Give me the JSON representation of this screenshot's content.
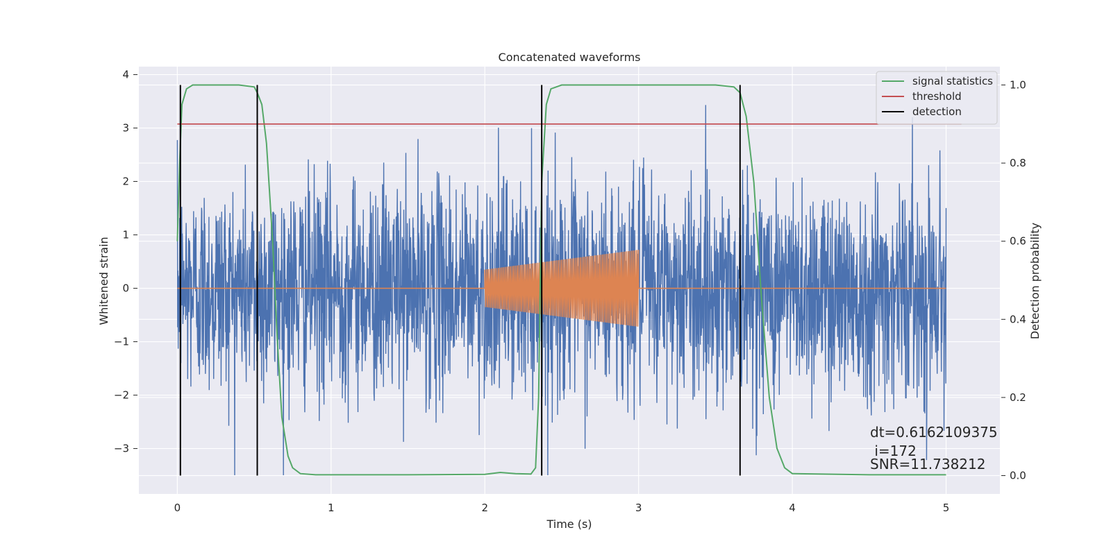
{
  "chart_data": {
    "type": "line",
    "title": "Concatenated waveforms",
    "xlabel": "Time (s)",
    "ylabel": "Whitened strain",
    "y2label": "Detection probability",
    "xlim": [
      -0.25,
      5.35
    ],
    "ylim": [
      -3.85,
      4.15
    ],
    "y2lim": [
      -0.047,
      1.047
    ],
    "xticks": [
      0,
      1,
      2,
      3,
      4,
      5
    ],
    "yticks": [
      -3,
      -2,
      -1,
      0,
      1,
      2,
      3,
      4
    ],
    "y2ticks": [
      0.0,
      0.2,
      0.4,
      0.6,
      0.8,
      1.0
    ],
    "xticklabels": [
      "0",
      "1",
      "2",
      "3",
      "4",
      "5"
    ],
    "yticklabels": [
      "−3",
      "−2",
      "−1",
      "0",
      "1",
      "2",
      "3",
      "4"
    ],
    "y2ticklabels": [
      "0.0",
      "0.2",
      "0.4",
      "0.6",
      "0.8",
      "1.0"
    ],
    "grid": true,
    "legend_position": "top-right",
    "series": [
      {
        "name": "",
        "kind": "noise",
        "axis": "left",
        "color": "#4c72b0",
        "x_range": [
          0,
          5
        ],
        "typical_amplitude": 1.0,
        "peak_abs": 3.5
      },
      {
        "name": "",
        "kind": "chirp",
        "axis": "left",
        "color": "#dd8452",
        "x": [
          0,
          2,
          2,
          3,
          3,
          5
        ],
        "amplitude_start": 0.35,
        "amplitude_end": 0.72
      },
      {
        "name": "signal statistics",
        "axis": "right",
        "color": "#55a868",
        "x": [
          0.0,
          0.015,
          0.03,
          0.06,
          0.1,
          0.2,
          0.4,
          0.5,
          0.52,
          0.55,
          0.58,
          0.62,
          0.65,
          0.68,
          0.72,
          0.75,
          0.8,
          0.9,
          1.5,
          2.0,
          2.1,
          2.2,
          2.3,
          2.33,
          2.35,
          2.37,
          2.4,
          2.43,
          2.5,
          3.0,
          3.5,
          3.62,
          3.66,
          3.7,
          3.75,
          3.8,
          3.85,
          3.9,
          3.95,
          4.0,
          4.5,
          5.0
        ],
        "y": [
          0.6,
          0.8,
          0.95,
          0.99,
          1.0,
          1.0,
          1.0,
          0.995,
          0.98,
          0.95,
          0.85,
          0.6,
          0.35,
          0.15,
          0.05,
          0.02,
          0.005,
          0.002,
          0.002,
          0.003,
          0.008,
          0.005,
          0.004,
          0.02,
          0.2,
          0.75,
          0.95,
          0.99,
          1.0,
          1.0,
          1.0,
          0.995,
          0.98,
          0.92,
          0.75,
          0.45,
          0.2,
          0.07,
          0.02,
          0.005,
          0.002,
          0.002
        ]
      },
      {
        "name": "threshold",
        "axis": "right",
        "color": "#c44e52",
        "x": [
          0,
          5.1
        ],
        "y": [
          0.9,
          0.9
        ]
      },
      {
        "name": "detection",
        "axis": "right",
        "color": "#000000",
        "x": [
          0.02,
          0.52,
          2.37,
          3.66
        ],
        "y_range": [
          0,
          1
        ]
      }
    ],
    "annotations": [
      "dt=0.6162109375",
      " i=172",
      "SNR=11.738212"
    ]
  }
}
